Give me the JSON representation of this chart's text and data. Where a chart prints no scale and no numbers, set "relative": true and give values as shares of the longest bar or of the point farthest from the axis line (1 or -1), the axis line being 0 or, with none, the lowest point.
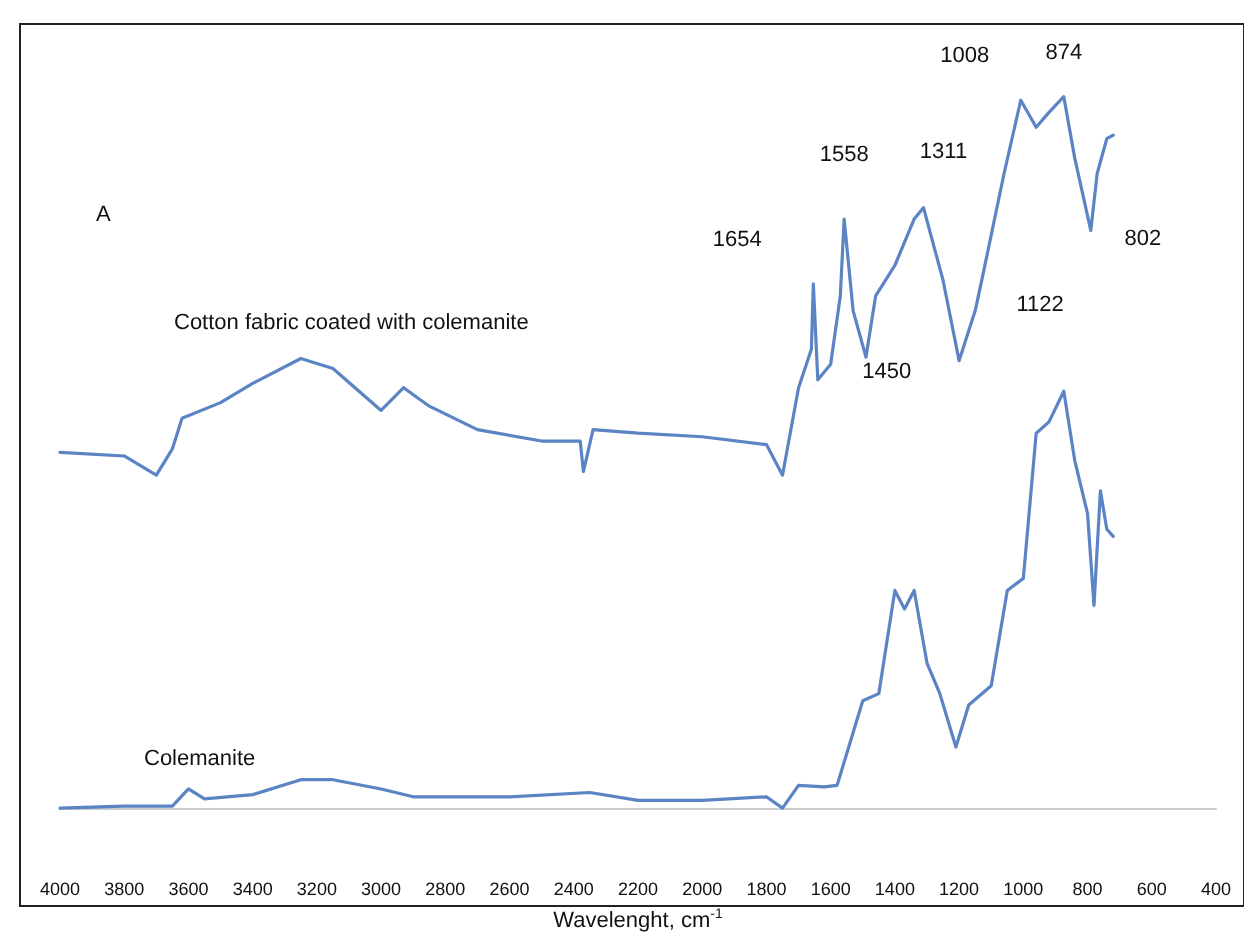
{
  "chart_data": {
    "type": "line",
    "relative": true,
    "xlabel": "Wavelenght, cm$^{-1}$",
    "xlim": [
      4000,
      400
    ],
    "xticks": [
      4000,
      3800,
      3600,
      3400,
      3200,
      3000,
      2800,
      2600,
      2400,
      2200,
      2000,
      1800,
      1600,
      1400,
      1200,
      1000,
      800,
      600,
      400
    ],
    "grid": false,
    "legend": false,
    "marker": "none",
    "line_style": "solid",
    "annotations": [
      "A",
      {
        "text": "1654",
        "x": 1654,
        "y": 0.737
      },
      {
        "text": "1558",
        "x": 1558,
        "y": 0.828
      },
      {
        "text": "1450",
        "x": 1450,
        "y": 0.72
      },
      {
        "text": "1311",
        "x": 1311,
        "y": 0.844
      },
      {
        "text": "1122",
        "x": 1122,
        "y": 0.758
      },
      {
        "text": "1008",
        "x": 1008,
        "y": 0.995
      },
      {
        "text": "874",
        "x": 874,
        "y": 1
      },
      {
        "text": "802",
        "x": 802,
        "y": 0.85
      }
    ],
    "series": [
      {
        "name": "Cotton fabric coated with colemanite",
        "color": "#5b84c4",
        "x": [
          4000,
          3800,
          3700,
          3650,
          3620,
          3500,
          3400,
          3250,
          3150,
          3000,
          2930,
          2850,
          2700,
          2500,
          2380,
          2370,
          2340,
          2200,
          2000,
          1800,
          1750,
          1700,
          1660,
          1654,
          1640,
          1600,
          1570,
          1558,
          1530,
          1490,
          1460,
          1400,
          1340,
          1311,
          1250,
          1200,
          1150,
          1122,
          1060,
          1008,
          960,
          920,
          874,
          840,
          790,
          770,
          740,
          720
        ],
        "values": [
          0.5,
          0.495,
          0.468,
          0.505,
          0.548,
          0.57,
          0.597,
          0.632,
          0.618,
          0.559,
          0.591,
          0.565,
          0.532,
          0.516,
          0.516,
          0.473,
          0.532,
          0.527,
          0.522,
          0.511,
          0.468,
          0.591,
          0.645,
          0.737,
          0.602,
          0.624,
          0.72,
          0.828,
          0.699,
          0.634,
          0.72,
          0.763,
          0.828,
          0.844,
          0.742,
          0.629,
          0.699,
          0.758,
          0.892,
          0.995,
          0.957,
          0.978,
          1,
          0.914,
          0.812,
          0.892,
          0.941,
          0.946
        ]
      },
      {
        "name": "Colemanite",
        "color": "#5b84c4",
        "x": [
          4000,
          3800,
          3650,
          3600,
          3550,
          3400,
          3250,
          3150,
          3000,
          2900,
          2600,
          2350,
          2200,
          2000,
          1800,
          1750,
          1700,
          1620,
          1580,
          1500,
          1450,
          1400,
          1370,
          1340,
          1300,
          1260,
          1210,
          1170,
          1100,
          1050,
          1000,
          960,
          920,
          874,
          840,
          800,
          780,
          760,
          740,
          720
        ],
        "values": [
          0,
          0.003,
          0.003,
          0.027,
          0.013,
          0.019,
          0.04,
          0.04,
          0.027,
          0.016,
          0.016,
          0.022,
          0.011,
          0.011,
          0.016,
          0,
          0.032,
          0.03,
          0.032,
          0.151,
          0.161,
          0.306,
          0.28,
          0.306,
          0.204,
          0.161,
          0.086,
          0.145,
          0.172,
          0.306,
          0.323,
          0.527,
          0.543,
          0.586,
          0.489,
          0.414,
          0.285,
          0.446,
          0.392,
          0.382
        ]
      }
    ]
  }
}
